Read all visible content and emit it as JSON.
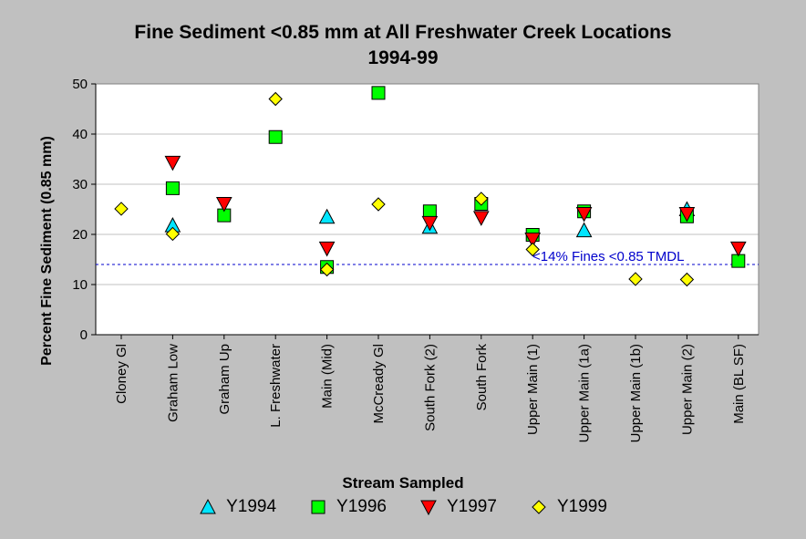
{
  "chart_data": {
    "type": "scatter",
    "title": "Fine Sediment <0.85 mm at All Freshwater Creek Locations",
    "subtitle": "1994-99",
    "xlabel": "Stream Sampled",
    "ylabel": "Percent Fine Sediment (0.85 mm)",
    "ylim": [
      0,
      50
    ],
    "yticks": [
      0,
      10,
      20,
      30,
      40,
      50
    ],
    "grid": true,
    "legend_position": "bottom",
    "categories": [
      "Cloney Gl",
      "Graham Low",
      "Graham Up",
      "L. Freshwater",
      "Main (Mid)",
      "McCready Gl",
      "South Fork (2)",
      "South Fork",
      "Upper Main (1)",
      "Upper Main (1a)",
      "Upper Main (1b)",
      "Upper Main (2)",
      "Main (BL SF)"
    ],
    "series": [
      {
        "name": "Y1994",
        "marker": "triangle-up",
        "color": "#00e5ff",
        "values": [
          null,
          21.8,
          null,
          null,
          23.5,
          null,
          21.5,
          null,
          null,
          20.8,
          null,
          25,
          null
        ]
      },
      {
        "name": "Y1996",
        "marker": "square",
        "color": "#00ff00",
        "values": [
          null,
          29.2,
          23.8,
          39.4,
          13.5,
          48.2,
          24.6,
          26.1,
          19.9,
          24.6,
          null,
          23.6,
          14.7
        ]
      },
      {
        "name": "Y1997",
        "marker": "triangle-down",
        "color": "#ff0000",
        "values": [
          null,
          34.3,
          26.1,
          null,
          17.2,
          null,
          22.3,
          23.3,
          19,
          24.1,
          null,
          24.1,
          17.2
        ]
      },
      {
        "name": "Y1999",
        "marker": "diamond",
        "color": "#ffff00",
        "values": [
          25.1,
          20.1,
          null,
          47,
          13,
          26,
          null,
          27.1,
          17,
          null,
          11.1,
          11,
          null
        ]
      }
    ],
    "reference_line": {
      "value": 14,
      "label": "<14% Fines <0.85 TMDL",
      "color": "#0000cc"
    }
  }
}
